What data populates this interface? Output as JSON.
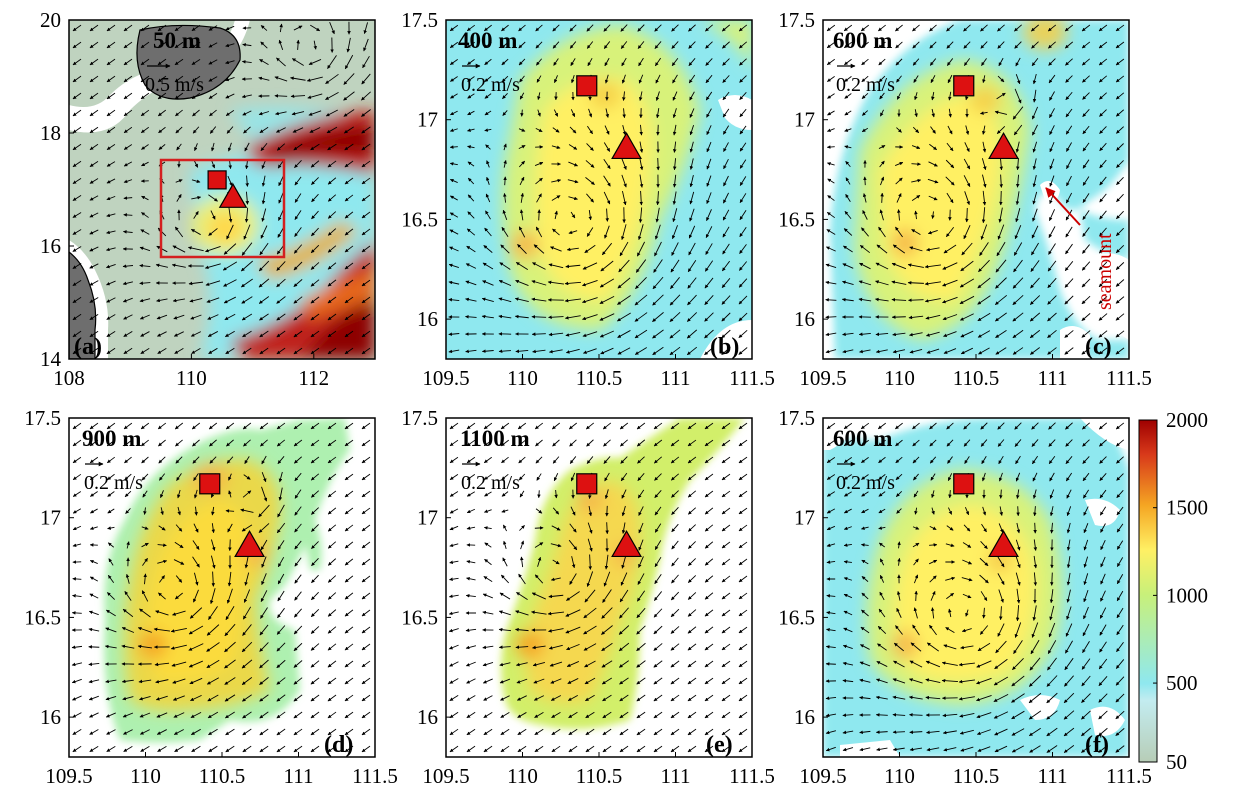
{
  "chart_data": {
    "type": "heatmap",
    "colorbar": {
      "ticks": [
        50,
        500,
        1000,
        1500,
        2000
      ],
      "range": [
        50,
        2000
      ],
      "colors": [
        "#b7cdb7",
        "#8fe8ef",
        "#fff064",
        "#f5a623",
        "#9e0000"
      ]
    },
    "markers": {
      "square": {
        "lon": 110.42,
        "lat": 17.17,
        "color": "#dd1111"
      },
      "triangle": {
        "lon": 110.68,
        "lat": 16.86,
        "color": "#dd1111"
      }
    },
    "panels": [
      {
        "id": "a",
        "label": "(a)",
        "depth": "50 m",
        "scale_label": "0.5 m/s",
        "scale_speed": 0.5,
        "xlim": [
          108,
          113
        ],
        "ylim": [
          14,
          20
        ],
        "xticks": [
          108,
          110,
          112
        ],
        "yticks": [
          14,
          16,
          18,
          20
        ],
        "xtick_labels": [
          "108",
          "110",
          "112"
        ],
        "ytick_labels": [
          "14",
          "16",
          "18",
          "20"
        ],
        "region_box": {
          "lon": [
            109.5,
            111.5
          ],
          "lat": [
            15.8,
            17.5
          ]
        },
        "eddies": [
          {
            "lon": 110.3,
            "lat": 16.3,
            "dir": 1,
            "r": 1.2
          },
          {
            "lon": 112.0,
            "lat": 19.4,
            "dir": 1,
            "r": 1.0
          }
        ]
      },
      {
        "id": "b",
        "label": "(b)",
        "depth": "400 m",
        "scale_label": "0.2 m/s",
        "scale_speed": 0.2,
        "xlim": [
          109.5,
          111.5
        ],
        "ylim": [
          15.8,
          17.5
        ],
        "xticks": [
          109.5,
          110,
          110.5,
          111,
          111.5
        ],
        "yticks": [
          16,
          16.5,
          17,
          17.5
        ],
        "xtick_labels": [
          "109.5",
          "110",
          "110.5",
          "111",
          "111.5"
        ],
        "ytick_labels": [
          "16",
          "16.5",
          "17",
          "17.5"
        ],
        "eddies": [
          {
            "lon": 110.38,
            "lat": 16.42,
            "dir": 1,
            "r": 0.9
          }
        ]
      },
      {
        "id": "c",
        "label": "(c)",
        "depth": "600 m",
        "scale_label": "0.2 m/s",
        "scale_speed": 0.2,
        "xlim": [
          109.5,
          111.5
        ],
        "ylim": [
          15.8,
          17.5
        ],
        "xticks": [
          109.5,
          110,
          110.5,
          111,
          111.5
        ],
        "yticks": [
          16,
          16.5,
          17,
          17.5
        ],
        "xtick_labels": [
          "109.5",
          "110",
          "110.5",
          "111",
          "111.5"
        ],
        "ytick_labels": [
          "16",
          "16.5",
          "17",
          "17.5"
        ],
        "annotation": "seamount",
        "eddies": [
          {
            "lon": 110.25,
            "lat": 16.45,
            "dir": 1,
            "r": 0.8
          },
          {
            "lon": 110.72,
            "lat": 17.08,
            "dir": 1,
            "r": 0.18
          }
        ]
      },
      {
        "id": "d",
        "label": "(d)",
        "depth": "900 m",
        "scale_label": "0.2 m/s",
        "scale_speed": 0.2,
        "xlim": [
          109.5,
          111.5
        ],
        "ylim": [
          15.8,
          17.5
        ],
        "xticks": [
          109.5,
          110,
          110.5,
          111,
          111.5
        ],
        "yticks": [
          16,
          16.5,
          17,
          17.5
        ],
        "xtick_labels": [
          "109.5",
          "110",
          "110.5",
          "111",
          "111.5"
        ],
        "ytick_labels": [
          "16",
          "16.5",
          "17",
          "17.5"
        ],
        "eddies": [
          {
            "lon": 110.22,
            "lat": 16.6,
            "dir": 1,
            "r": 0.6
          },
          {
            "lon": 110.72,
            "lat": 17.08,
            "dir": 1,
            "r": 0.2
          }
        ]
      },
      {
        "id": "e",
        "label": "(e)",
        "depth": "1100 m",
        "scale_label": "0.2 m/s",
        "scale_speed": 0.2,
        "xlim": [
          109.5,
          111.5
        ],
        "ylim": [
          15.8,
          17.5
        ],
        "xticks": [
          109.5,
          110,
          110.5,
          111,
          111.5
        ],
        "yticks": [
          16,
          16.5,
          17,
          17.5
        ],
        "xtick_labels": [
          "109.5",
          "110",
          "110.5",
          "111",
          "111.5"
        ],
        "ytick_labels": [
          "16",
          "16.5",
          "17",
          "17.5"
        ],
        "eddies": [
          {
            "lon": 110.25,
            "lat": 16.7,
            "dir": 1,
            "r": 0.55
          }
        ]
      },
      {
        "id": "f",
        "label": "(f)",
        "depth": "600 m",
        "scale_label": "0.2 m/s",
        "scale_speed": 0.2,
        "xlim": [
          109.5,
          111.5
        ],
        "ylim": [
          15.8,
          17.5
        ],
        "xticks": [
          109.5,
          110,
          110.5,
          111,
          111.5
        ],
        "yticks": [
          16,
          16.5,
          17,
          17.5
        ],
        "xtick_labels": [
          "109.5",
          "110",
          "110.5",
          "111",
          "111.5"
        ],
        "ytick_labels": [
          "16",
          "16.5",
          "17",
          "17.5"
        ],
        "eddies": [
          {
            "lon": 110.48,
            "lat": 16.45,
            "dir": 1,
            "r": 0.85
          }
        ]
      }
    ]
  }
}
